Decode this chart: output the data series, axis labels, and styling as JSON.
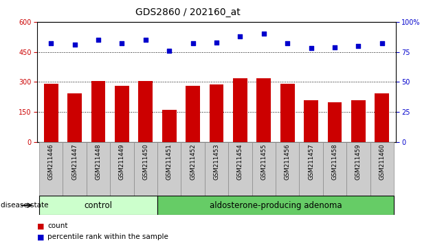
{
  "title": "GDS2860 / 202160_at",
  "samples": [
    "GSM211446",
    "GSM211447",
    "GSM211448",
    "GSM211449",
    "GSM211450",
    "GSM211451",
    "GSM211452",
    "GSM211453",
    "GSM211454",
    "GSM211455",
    "GSM211456",
    "GSM211457",
    "GSM211458",
    "GSM211459",
    "GSM211460"
  ],
  "counts": [
    290,
    245,
    305,
    280,
    305,
    160,
    280,
    288,
    320,
    318,
    292,
    210,
    200,
    210,
    245
  ],
  "percentiles": [
    82,
    81,
    85,
    82,
    85,
    76,
    82,
    83,
    88,
    90,
    82,
    78,
    79,
    80,
    82
  ],
  "bar_color": "#cc0000",
  "dot_color": "#0000cc",
  "n_control": 5,
  "n_adenoma": 10,
  "control_label": "control",
  "adenoma_label": "aldosterone-producing adenoma",
  "disease_state_label": "disease state",
  "legend_count": "count",
  "legend_pct": "percentile rank within the sample",
  "ylim_left": [
    0,
    600
  ],
  "ylim_right": [
    0,
    100
  ],
  "yticks_left": [
    0,
    150,
    300,
    450,
    600
  ],
  "yticks_right": [
    0,
    25,
    50,
    75,
    100
  ],
  "grid_lines": [
    150,
    300,
    450
  ],
  "control_bg": "#ccffcc",
  "adenoma_bg": "#66cc66",
  "xlabel_bg": "#cccccc",
  "title_fontsize": 10,
  "tick_fontsize": 7,
  "label_fontsize": 8.5
}
